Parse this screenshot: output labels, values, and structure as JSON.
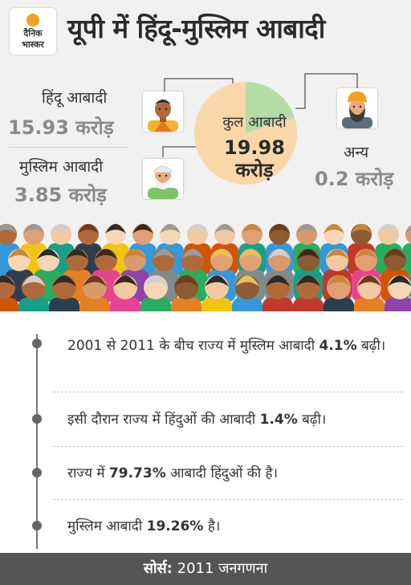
{
  "brand": {
    "line1": "दैनिक",
    "line2": "भास्कर",
    "dot_color": "#f4a01c"
  },
  "title": "यूपी में हिंदू-मुस्लिम आबादी",
  "chart_data": {
    "type": "pie",
    "slices": [
      {
        "label": "हिंदू आबादी",
        "value": 15.93,
        "display": "15.93 करोड़",
        "color": "#f9d7a8"
      },
      {
        "label": "मुस्लिम आबादी",
        "value": 3.85,
        "display": "3.85 करोड़",
        "color": "#b5dca4"
      },
      {
        "label": "अन्य",
        "value": 0.2,
        "display": "0.2 करोड़",
        "color": "#cfcfcf"
      }
    ],
    "total_label": "कुल आबादी",
    "total_value": "19.98",
    "total_unit": "करोड़"
  },
  "facts": [
    {
      "pre": "2001 से 2011 के बीच राज्य में मुस्लिम आबादी",
      "bold": "4.1%",
      "post": " बढ़ी।"
    },
    {
      "pre": "इसी दौरान राज्य में हिंदुओं की आबादी ",
      "bold": "1.4%",
      "post": " बढ़ी।"
    },
    {
      "pre": "राज्य में ",
      "bold": "79.73%",
      "post": " आबादी हिंदुओं की है।"
    },
    {
      "pre": "मुस्लिम आबादी ",
      "bold": "19.26%",
      "post": " है।"
    }
  ],
  "footer": {
    "label": "सोर्स:",
    "text": " 2011 जनगणना"
  }
}
